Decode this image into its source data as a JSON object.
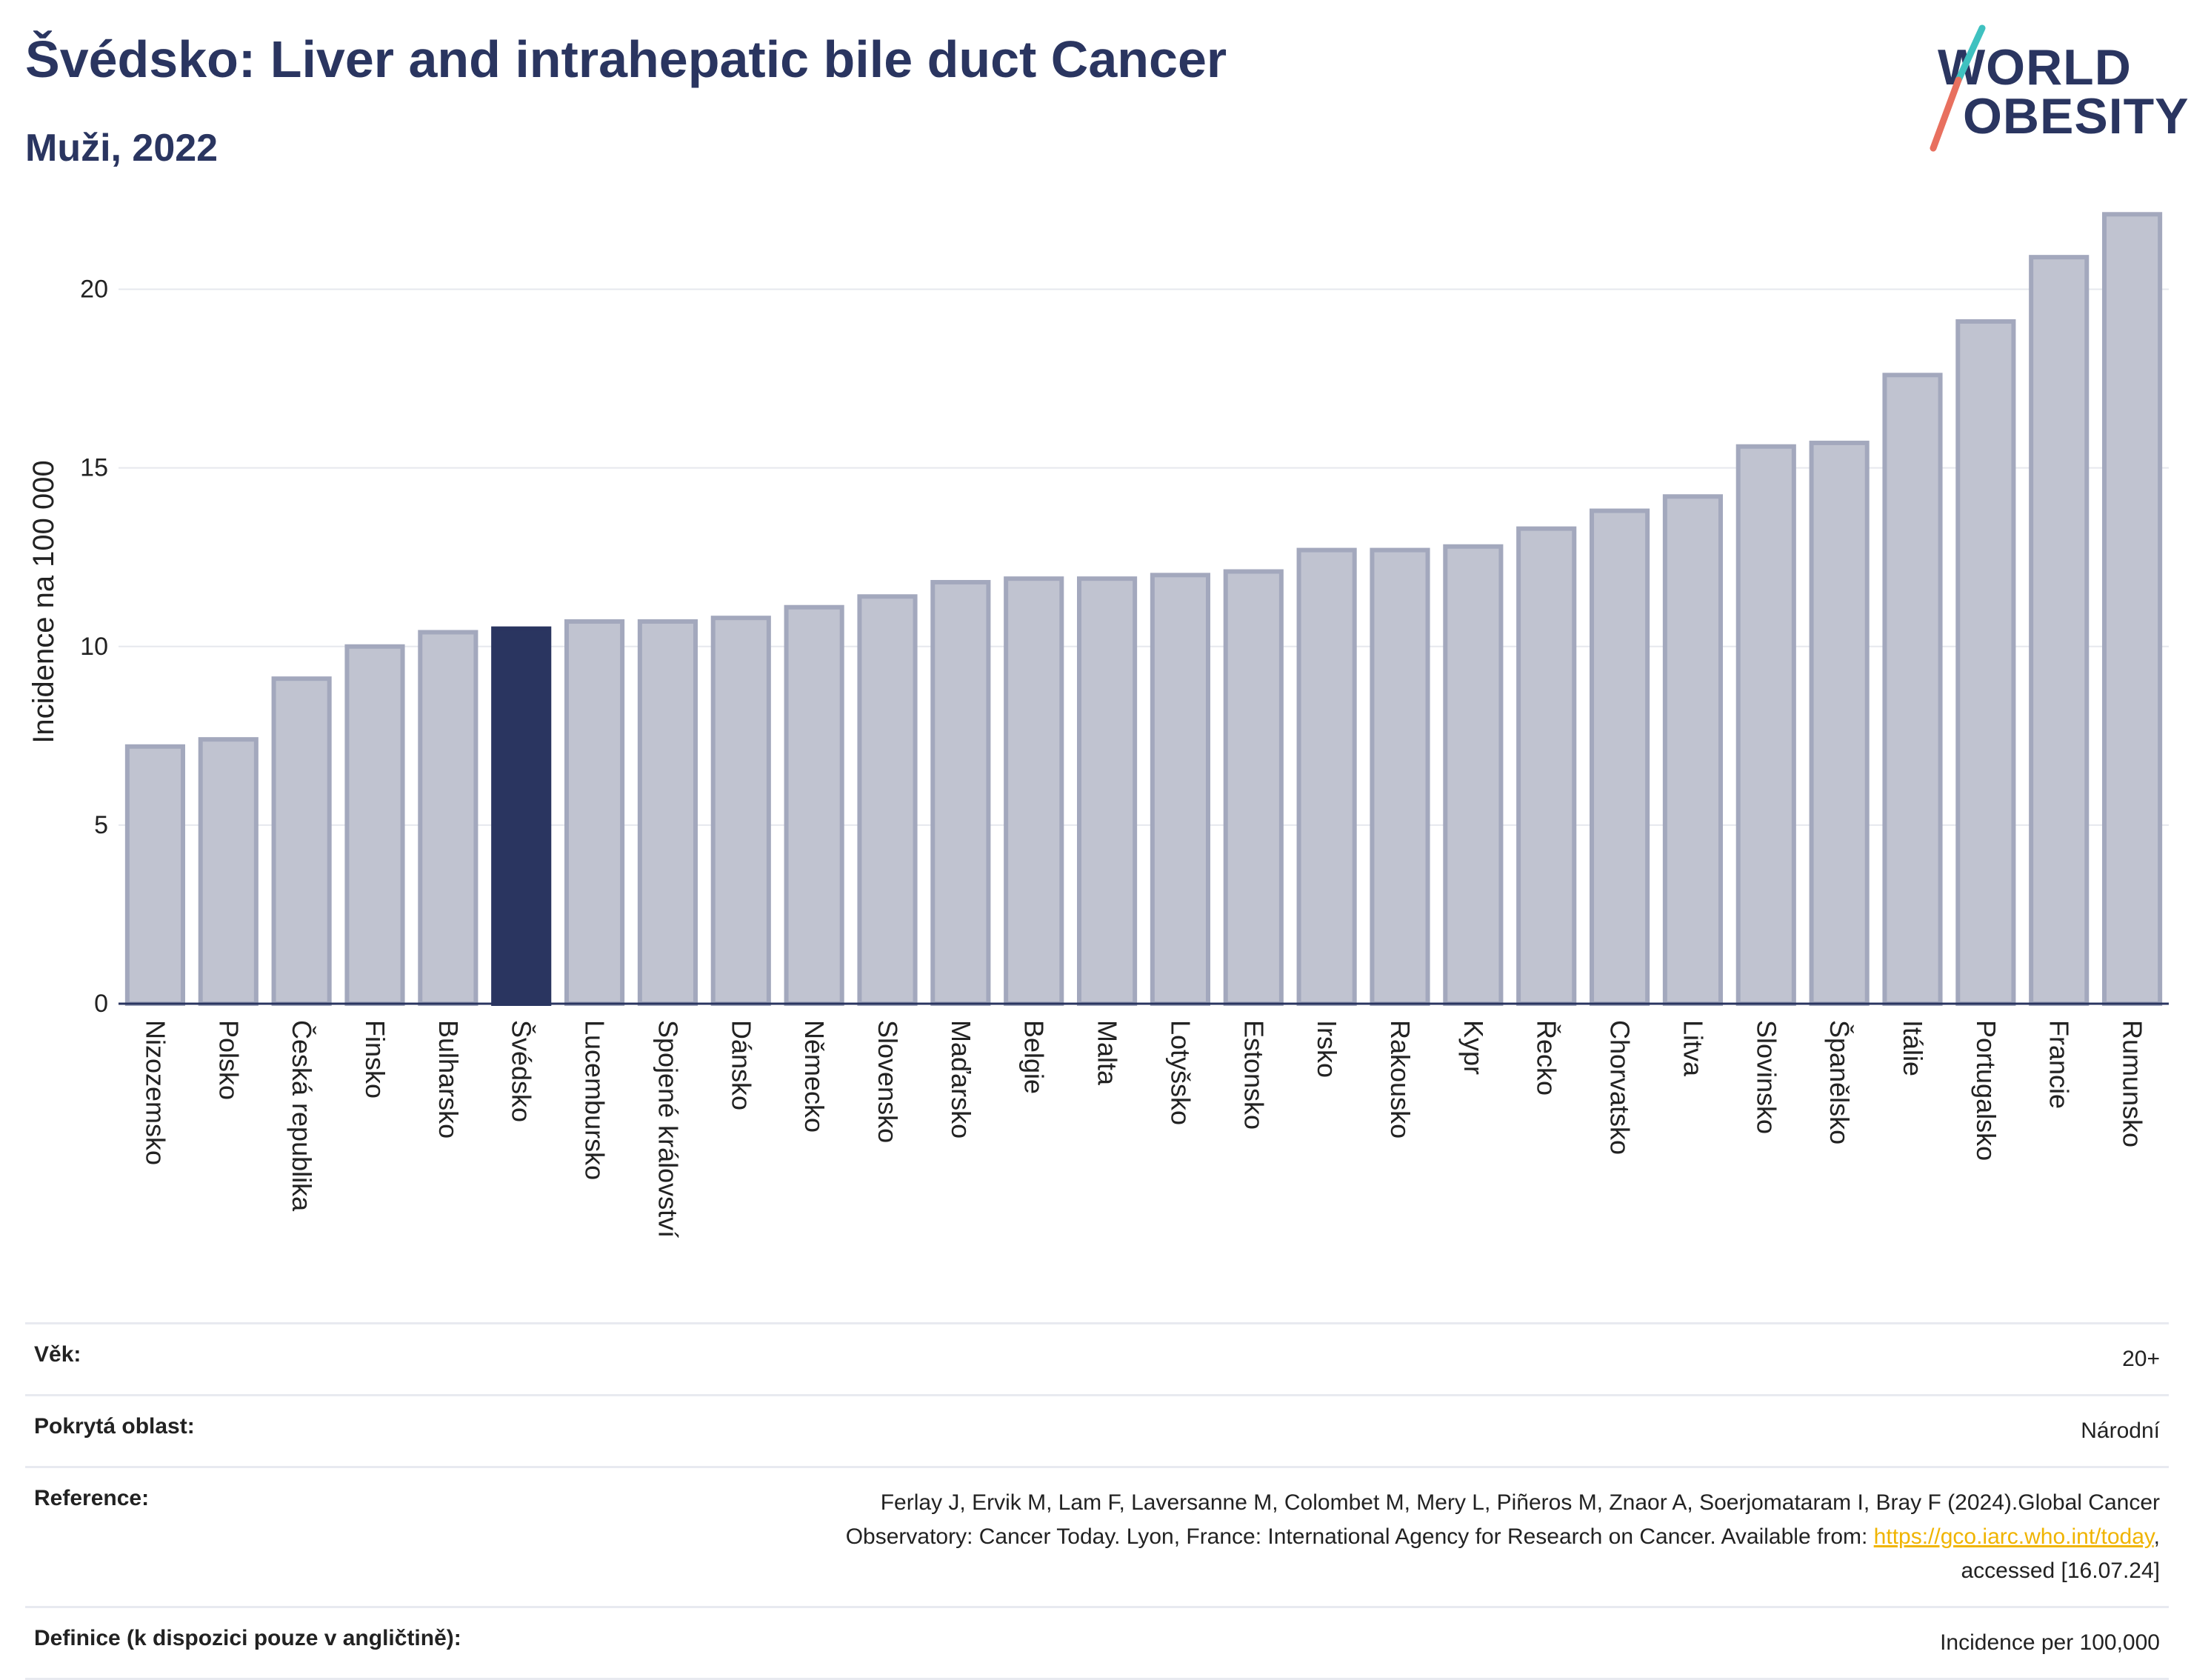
{
  "header": {
    "title": "Švédsko: Liver and intrahepatic bile duct Cancer",
    "subtitle": "Muži, 2022"
  },
  "logo": {
    "line1": "WORLD",
    "line2": "OBESITY",
    "accent_colors": [
      "#3fc1c0",
      "#e8705f"
    ]
  },
  "chart_data": {
    "type": "bar",
    "ylabel": "Incidence na 100 000",
    "ylim": [
      0,
      22.5
    ],
    "yticks": [
      0,
      5,
      10,
      15,
      20
    ],
    "grid": true,
    "highlight": "Švédsko",
    "colors": {
      "bar": "#c0c3d0",
      "bar_border": "#a3a8bd",
      "highlight": "#2a3560"
    },
    "categories": [
      "Nizozemsko",
      "Polsko",
      "Česká republika",
      "Finsko",
      "Bulharsko",
      "Švédsko",
      "Lucembursko",
      "Spojené království",
      "Dánsko",
      "Německo",
      "Slovensko",
      "Maďarsko",
      "Belgie",
      "Malta",
      "Lotyšsko",
      "Estonsko",
      "Irsko",
      "Rakousko",
      "Kypr",
      "Řecko",
      "Chorvatsko",
      "Litva",
      "Slovinsko",
      "Španělsko",
      "Itálie",
      "Portugalsko",
      "Francie",
      "Rumunsko"
    ],
    "values": [
      7.2,
      7.4,
      9.1,
      10.0,
      10.4,
      10.5,
      10.7,
      10.7,
      10.8,
      11.1,
      11.4,
      11.8,
      11.9,
      11.9,
      12.0,
      12.1,
      12.7,
      12.7,
      12.8,
      13.3,
      13.8,
      14.2,
      15.6,
      15.7,
      17.6,
      19.1,
      20.9,
      22.1
    ]
  },
  "info": {
    "rows": [
      {
        "label": "Věk:",
        "value": "20+"
      },
      {
        "label": "Pokrytá oblast:",
        "value": "Národní"
      }
    ],
    "reference": {
      "label": "Reference:",
      "line1": "Ferlay J, Ervik M, Lam F, Laversanne M, Colombet M, Mery L, Piñeros M, Znaor A, Soerjomataram I, Bray F (2024).Global Cancer",
      "line2_before": "Observatory: Cancer Today. Lyon, France: International Agency for Research on Cancer. Available from: ",
      "link": "https://gco.iarc.who.int/today",
      "line2_after": ",",
      "line3": "accessed [16.07.24]"
    },
    "definition": {
      "label": "Definice (k dispozici pouze v angličtině):",
      "value": "Incidence per 100,000"
    }
  }
}
